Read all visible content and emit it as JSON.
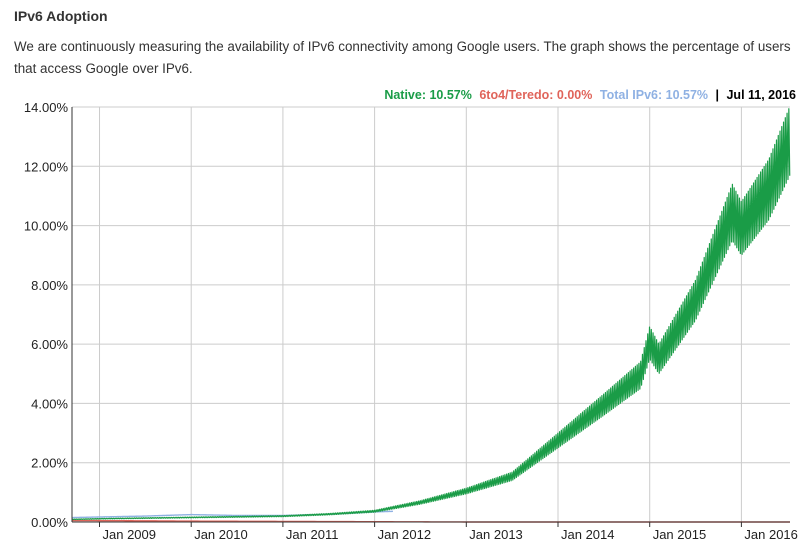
{
  "page": {
    "title": "IPv6 Adoption",
    "description": "We are continuously measuring the availability of IPv6 connectivity among Google users. The graph shows the percentage of users that access Google over IPv6."
  },
  "legend": {
    "native": "Native: 10.57%",
    "teredo": "6to4/Teredo: 0.00%",
    "total": "Total IPv6: 10.57%",
    "separator": "|",
    "date": "Jul 11, 2016",
    "colors": {
      "native": "#1a9c47",
      "teredo": "#e0645a",
      "total": "#8fb1e3",
      "date": "#000000"
    }
  },
  "chart_data": {
    "type": "line",
    "title": "IPv6 Adoption",
    "xlabel": "",
    "ylabel": "",
    "ylim": [
      0,
      14
    ],
    "y_ticks": [
      0,
      2,
      4,
      6,
      8,
      10,
      12,
      14
    ],
    "y_tick_labels": [
      "0.00%",
      "2.00%",
      "4.00%",
      "6.00%",
      "8.00%",
      "10.00%",
      "12.00%",
      "14.00%"
    ],
    "x_range": [
      2008.7,
      2016.53
    ],
    "x_ticks": [
      2009,
      2010,
      2011,
      2012,
      2013,
      2014,
      2015,
      2016
    ],
    "x_tick_labels": [
      "Jan 2009",
      "Jan 2010",
      "Jan 2011",
      "Jan 2012",
      "Jan 2013",
      "Jan 2014",
      "Jan 2015",
      "Jan 2016"
    ],
    "grid": true,
    "series": [
      {
        "name": "Native",
        "color": "#1a9c47",
        "weekly_swing_fraction": 0.2,
        "trend": [
          [
            2008.7,
            0.08
          ],
          [
            2009.0,
            0.1
          ],
          [
            2010.0,
            0.14
          ],
          [
            2011.0,
            0.18
          ],
          [
            2011.5,
            0.24
          ],
          [
            2012.0,
            0.33
          ],
          [
            2012.5,
            0.6
          ],
          [
            2013.0,
            0.95
          ],
          [
            2013.5,
            1.4
          ],
          [
            2014.0,
            2.5
          ],
          [
            2014.5,
            3.6
          ],
          [
            2014.9,
            4.5
          ],
          [
            2015.0,
            5.5
          ],
          [
            2015.1,
            5.0
          ],
          [
            2015.5,
            6.8
          ],
          [
            2015.9,
            9.5
          ],
          [
            2016.0,
            9.0
          ],
          [
            2016.3,
            10.2
          ],
          [
            2016.53,
            11.7
          ]
        ]
      },
      {
        "name": "6to4/Teredo",
        "color": "#e0645a",
        "trend": [
          [
            2008.7,
            0.05
          ],
          [
            2009.5,
            0.04
          ],
          [
            2010.0,
            0.03
          ],
          [
            2011.0,
            0.02
          ],
          [
            2012.0,
            0.01
          ],
          [
            2013.0,
            0.0
          ],
          [
            2016.53,
            0.0
          ]
        ]
      },
      {
        "name": "Total IPv6",
        "color": "#8fb1e3",
        "trend": [
          [
            2008.7,
            0.15
          ],
          [
            2009.0,
            0.17
          ],
          [
            2009.5,
            0.2
          ],
          [
            2010.0,
            0.25
          ],
          [
            2010.5,
            0.22
          ],
          [
            2011.0,
            0.22
          ],
          [
            2011.5,
            0.26
          ],
          [
            2012.0,
            0.34
          ],
          [
            2012.2,
            0.36
          ]
        ]
      }
    ]
  }
}
